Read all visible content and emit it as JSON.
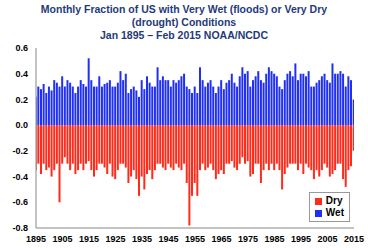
{
  "chart_data": {
    "type": "bar",
    "title": "Monthly Fraction of US with Very Wet (floods) or Very Dry (drought) Conditions",
    "subtitle": "Jan 1895 – Feb 2015 NOAA/NCDC",
    "x": [
      1895,
      1896,
      1897,
      1898,
      1899,
      1900,
      1901,
      1902,
      1903,
      1904,
      1905,
      1906,
      1907,
      1908,
      1909,
      1910,
      1911,
      1912,
      1913,
      1914,
      1915,
      1916,
      1917,
      1918,
      1919,
      1920,
      1921,
      1922,
      1923,
      1924,
      1925,
      1926,
      1927,
      1928,
      1929,
      1930,
      1931,
      1932,
      1933,
      1934,
      1935,
      1936,
      1937,
      1938,
      1939,
      1940,
      1941,
      1942,
      1943,
      1944,
      1945,
      1946,
      1947,
      1948,
      1949,
      1950,
      1951,
      1952,
      1953,
      1954,
      1955,
      1956,
      1957,
      1958,
      1959,
      1960,
      1961,
      1962,
      1963,
      1964,
      1965,
      1966,
      1967,
      1968,
      1969,
      1970,
      1971,
      1972,
      1973,
      1974,
      1975,
      1976,
      1977,
      1978,
      1979,
      1980,
      1981,
      1982,
      1983,
      1984,
      1985,
      1986,
      1987,
      1988,
      1989,
      1990,
      1991,
      1992,
      1993,
      1994,
      1995,
      1996,
      1997,
      1998,
      1999,
      2000,
      2001,
      2002,
      2003,
      2004,
      2005,
      2006,
      2007,
      2008,
      2009,
      2010,
      2011,
      2012,
      2013,
      2014,
      2015
    ],
    "series": [
      {
        "name": "Dry",
        "color": "#ff2a1a",
        "values": [
          -0.35,
          -0.3,
          -0.38,
          -0.3,
          -0.35,
          -0.33,
          -0.4,
          -0.35,
          -0.3,
          -0.6,
          -0.3,
          -0.25,
          -0.3,
          -0.35,
          -0.3,
          -0.38,
          -0.35,
          -0.3,
          -0.35,
          -0.3,
          -0.28,
          -0.35,
          -0.4,
          -0.35,
          -0.3,
          -0.3,
          -0.33,
          -0.38,
          -0.3,
          -0.4,
          -0.42,
          -0.35,
          -0.3,
          -0.3,
          -0.33,
          -0.45,
          -0.4,
          -0.35,
          -0.42,
          -0.55,
          -0.4,
          -0.5,
          -0.38,
          -0.35,
          -0.42,
          -0.35,
          -0.3,
          -0.3,
          -0.33,
          -0.35,
          -0.3,
          -0.33,
          -0.35,
          -0.3,
          -0.33,
          -0.35,
          -0.3,
          -0.45,
          -0.78,
          -0.55,
          -0.45,
          -0.55,
          -0.35,
          -0.3,
          -0.35,
          -0.33,
          -0.3,
          -0.35,
          -0.42,
          -0.38,
          -0.35,
          -0.38,
          -0.3,
          -0.3,
          -0.28,
          -0.33,
          -0.35,
          -0.3,
          -0.25,
          -0.3,
          -0.28,
          -0.4,
          -0.38,
          -0.3,
          -0.3,
          -0.45,
          -0.35,
          -0.3,
          -0.35,
          -0.3,
          -0.35,
          -0.3,
          -0.35,
          -0.5,
          -0.38,
          -0.33,
          -0.3,
          -0.3,
          -0.3,
          -0.35,
          -0.3,
          -0.38,
          -0.3,
          -0.33,
          -0.35,
          -0.42,
          -0.35,
          -0.4,
          -0.35,
          -0.3,
          -0.33,
          -0.4,
          -0.38,
          -0.35,
          -0.3,
          -0.3,
          -0.42,
          -0.48,
          -0.35,
          -0.32,
          -0.2
        ]
      },
      {
        "name": "Wet",
        "color": "#1f2ff5",
        "values": [
          0.22,
          0.3,
          0.28,
          0.32,
          0.25,
          0.3,
          0.27,
          0.35,
          0.33,
          0.3,
          0.38,
          0.3,
          0.35,
          0.33,
          0.3,
          0.25,
          0.3,
          0.35,
          0.32,
          0.3,
          0.52,
          0.35,
          0.3,
          0.3,
          0.38,
          0.3,
          0.32,
          0.33,
          0.35,
          0.3,
          0.3,
          0.33,
          0.42,
          0.35,
          0.4,
          0.25,
          0.28,
          0.3,
          0.27,
          0.22,
          0.35,
          0.28,
          0.38,
          0.33,
          0.3,
          0.3,
          0.45,
          0.35,
          0.38,
          0.35,
          0.35,
          0.3,
          0.35,
          0.33,
          0.35,
          0.38,
          0.4,
          0.3,
          0.28,
          0.25,
          0.3,
          0.25,
          0.45,
          0.35,
          0.3,
          0.33,
          0.35,
          0.3,
          0.25,
          0.3,
          0.35,
          0.28,
          0.33,
          0.35,
          0.4,
          0.33,
          0.3,
          0.38,
          0.45,
          0.4,
          0.42,
          0.3,
          0.35,
          0.38,
          0.42,
          0.35,
          0.33,
          0.4,
          0.45,
          0.42,
          0.4,
          0.38,
          0.3,
          0.28,
          0.35,
          0.4,
          0.42,
          0.38,
          0.48,
          0.35,
          0.4,
          0.4,
          0.38,
          0.42,
          0.3,
          0.3,
          0.33,
          0.35,
          0.38,
          0.4,
          0.35,
          0.33,
          0.48,
          0.4,
          0.4,
          0.42,
          0.4,
          0.3,
          0.38,
          0.35,
          0.2
        ]
      }
    ],
    "xlim": [
      1895,
      2015
    ],
    "xticks": [
      1895,
      1905,
      1915,
      1925,
      1935,
      1945,
      1955,
      1965,
      1975,
      1985,
      1995,
      2005,
      2015
    ],
    "ylim": [
      -0.8,
      0.6
    ],
    "yticks": [
      -0.8,
      -0.6,
      -0.4,
      -0.2,
      {
        "value": 0,
        "label": "0.0"
      },
      0.2,
      0.4,
      0.6
    ],
    "grid": false,
    "stacked": true,
    "legend": "lower right"
  }
}
